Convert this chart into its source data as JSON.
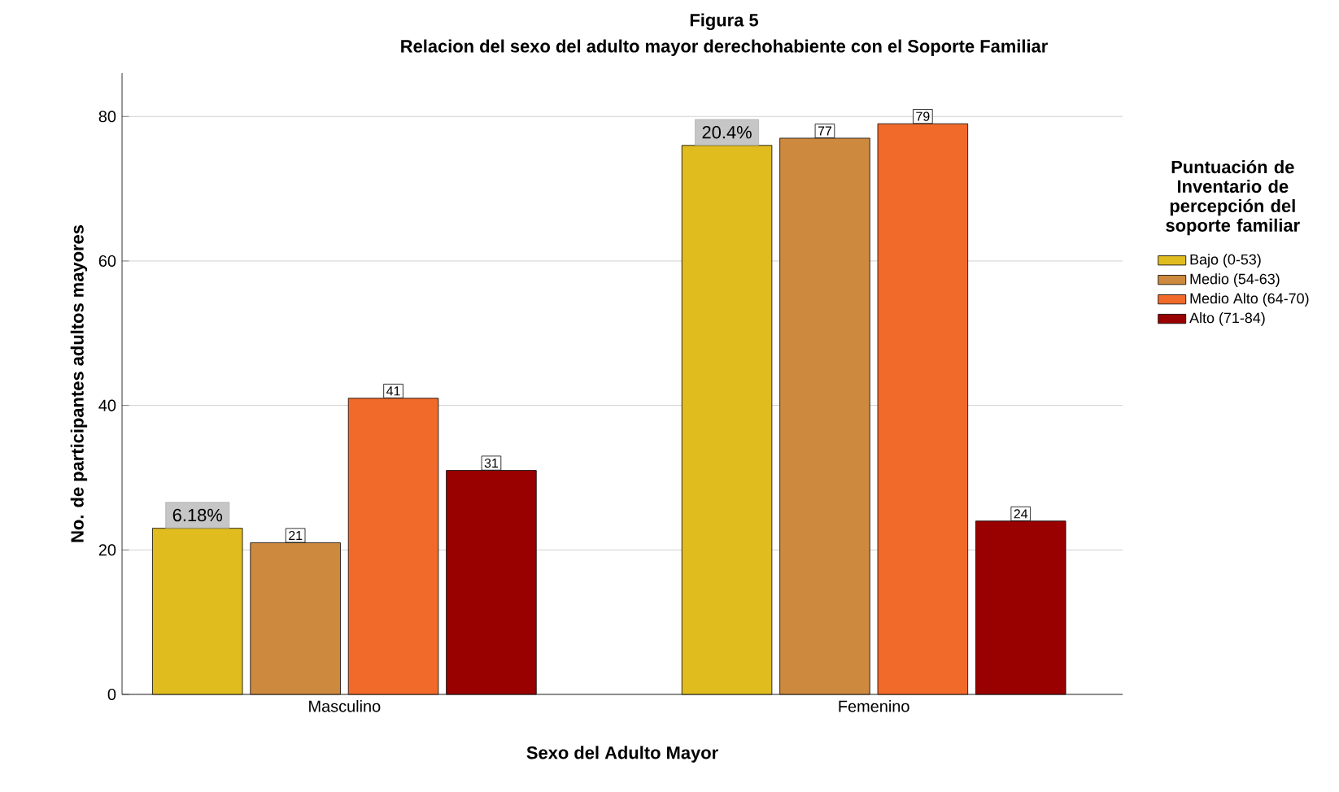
{
  "chart_data": {
    "type": "bar",
    "title": "Figura 5",
    "subtitle": "Relacion del sexo del adulto mayor derechohabiente con el Soporte Familiar",
    "xlabel": "Sexo del Adulto Mayor",
    "ylabel": "No. de participantes adultos mayores",
    "legend_title": "Puntuación de Inventario de percepción del soporte familiar",
    "categories": [
      "Masculino",
      "Femenino"
    ],
    "series": [
      {
        "name": "Bajo (0-53)",
        "color": "#e0bc1f",
        "values": [
          23,
          76
        ],
        "value_labels": [
          null,
          null
        ]
      },
      {
        "name": "Medio (54-63)",
        "color": "#cd8a3e",
        "values": [
          21,
          77
        ],
        "value_labels": [
          "21",
          "77"
        ]
      },
      {
        "name": "Medio Alto (64-70)",
        "color": "#f26a2a",
        "values": [
          41,
          79
        ],
        "value_labels": [
          "41",
          "79"
        ]
      },
      {
        "name": "Alto (71-84)",
        "color": "#990000",
        "values": [
          31,
          24
        ],
        "value_labels": [
          "31",
          "24"
        ]
      }
    ],
    "annotations": [
      "6.18%",
      "20.4%"
    ],
    "ylim": [
      0,
      86
    ],
    "yticks": [
      0,
      20,
      40,
      60,
      80
    ],
    "grid": "y",
    "legend": "right"
  }
}
